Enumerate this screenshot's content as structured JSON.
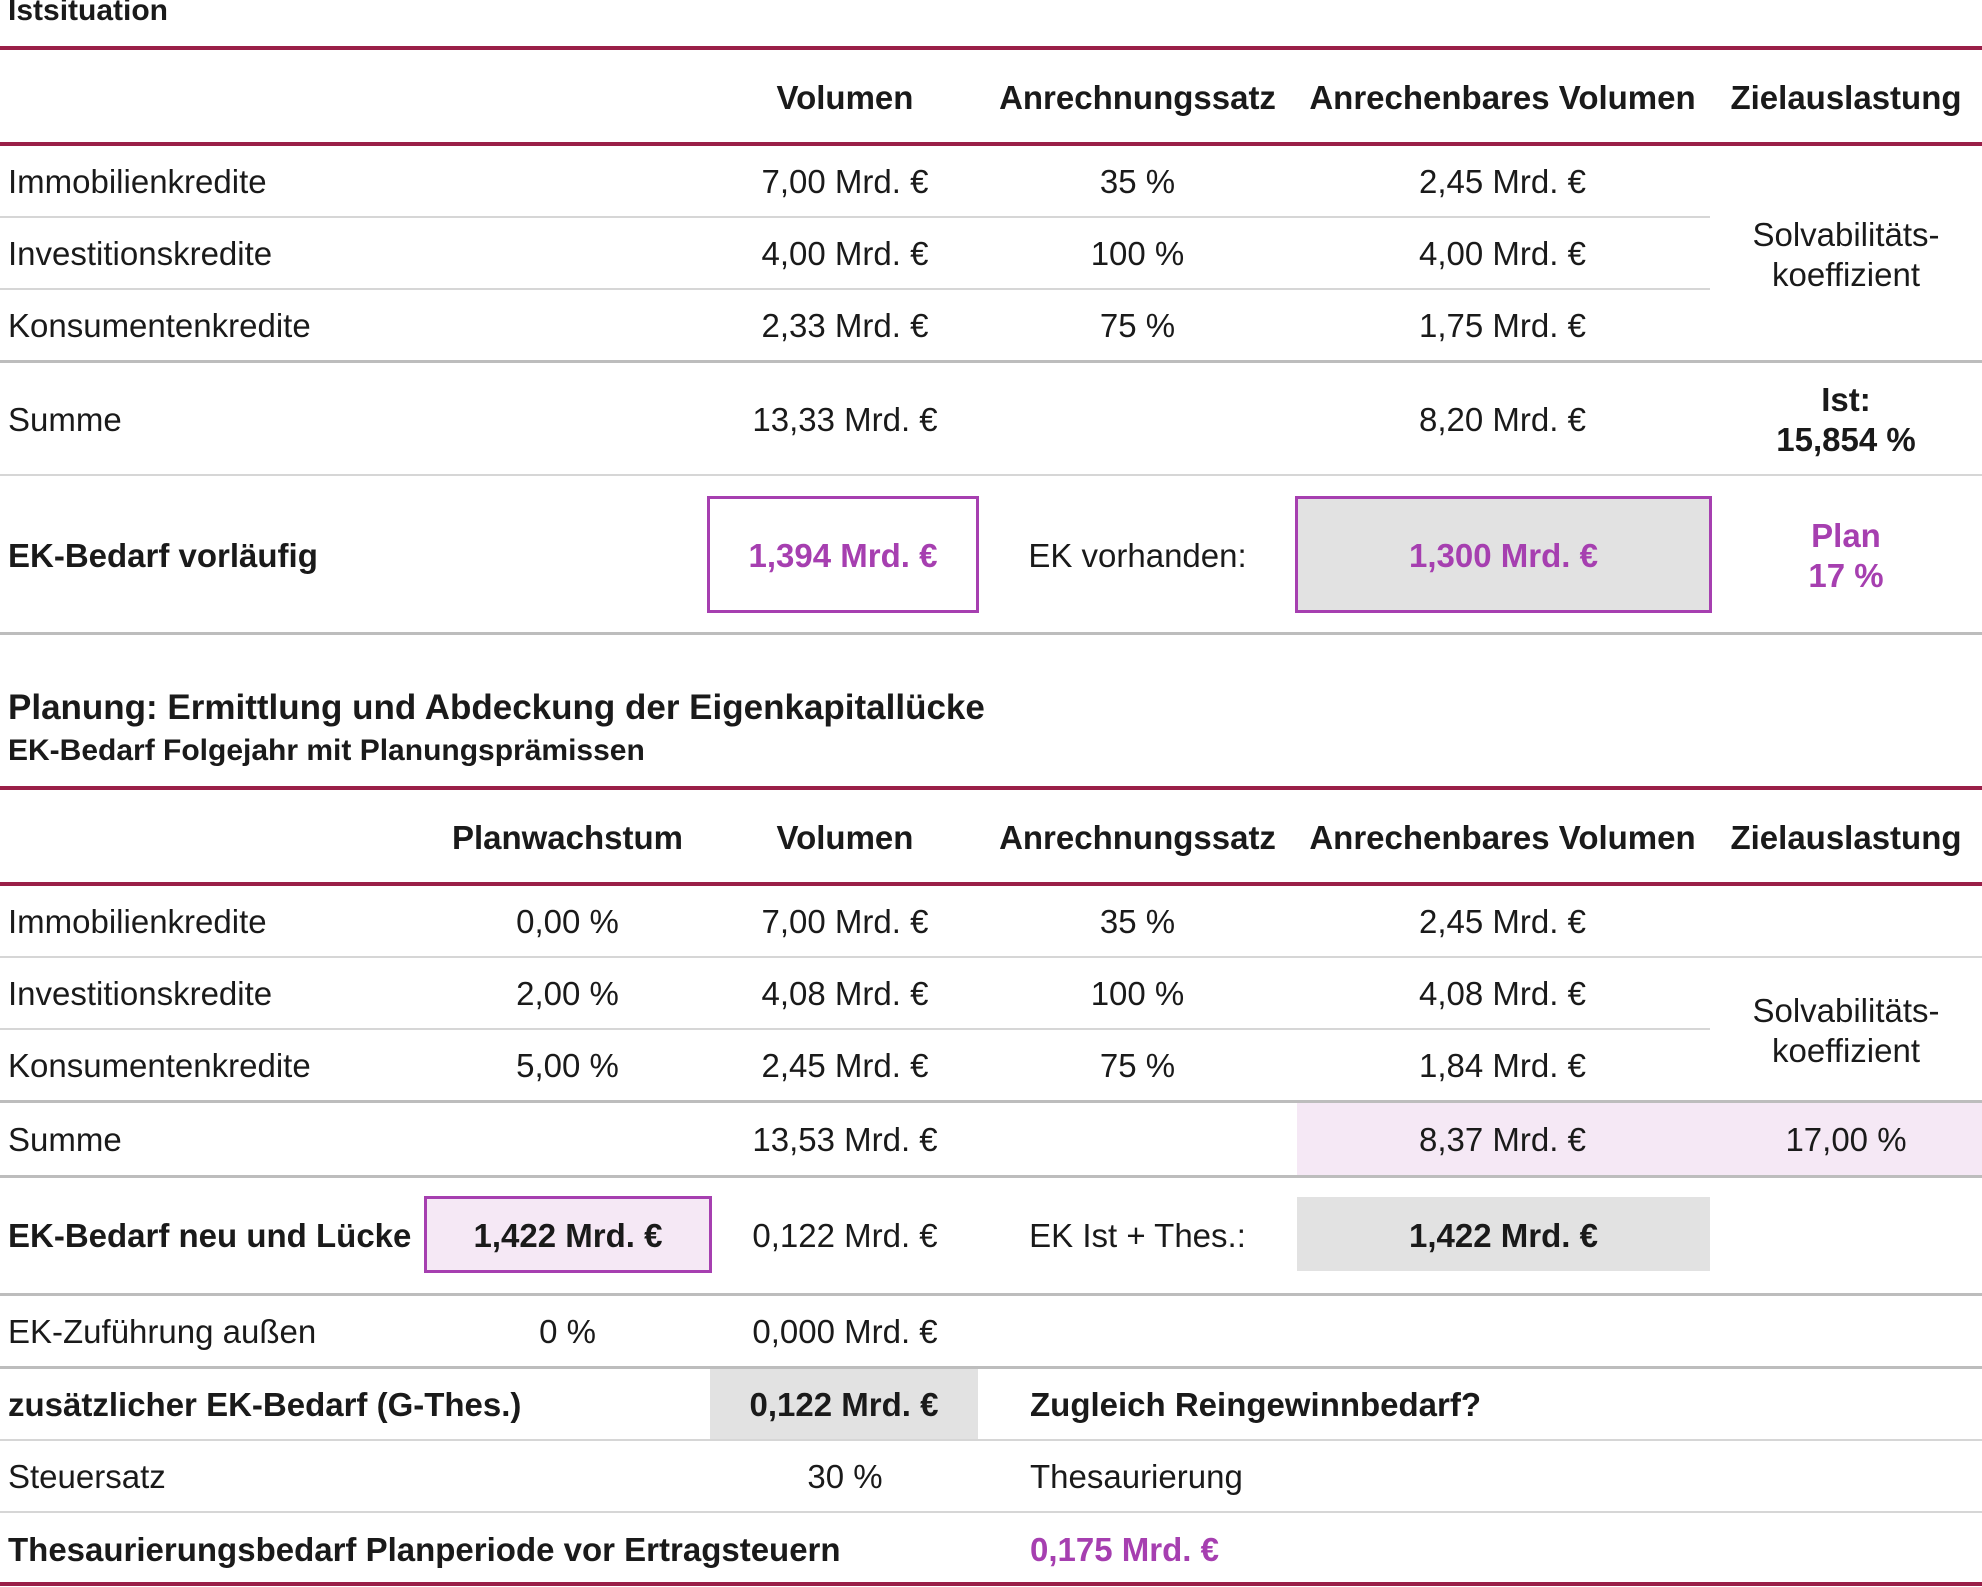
{
  "section1": {
    "title": "Istsituation",
    "headers": {
      "volumen": "Volumen",
      "anrechnungssatz": "Anrechnungssatz",
      "anrechenbares": "Anrechenbares Volumen",
      "zielauslastung": "Zielauslastung"
    },
    "rows": [
      {
        "label": "Immobilienkredite",
        "volumen": "7,00 Mrd. €",
        "satz": "35 %",
        "anrechenbar": "2,45 Mrd. €"
      },
      {
        "label": "Investitionskredite",
        "volumen": "4,00 Mrd. €",
        "satz": "100 %",
        "anrechenbar": "4,00 Mrd. €"
      },
      {
        "label": "Konsumentenkredite",
        "volumen": "2,33 Mrd. €",
        "satz": "75 %",
        "anrechenbar": "1,75 Mrd. €"
      }
    ],
    "ziel_line1": "Solvabilitäts-",
    "ziel_line2": "koeffizient",
    "summe": {
      "label": "Summe",
      "volumen": "13,33 Mrd. €",
      "anrechenbar": "8,20 Mrd. €",
      "ist_label": "Ist:",
      "ist_value": "15,854 %"
    },
    "ek": {
      "label": "EK-Bedarf vorläufig",
      "bedarf": "1,394 Mrd. €",
      "vorhanden_label": "EK vorhanden:",
      "vorhanden": "1,300 Mrd. €",
      "plan_label": "Plan",
      "plan_value": "17 %"
    }
  },
  "section2": {
    "title": "Planung: Ermittlung und Abdeckung der Eigenkapitallücke",
    "subtitle": "EK-Bedarf Folgejahr mit Planungsprämissen",
    "headers": {
      "planwachstum": "Planwachstum",
      "volumen": "Volumen",
      "anrechnungssatz": "Anrechnungssatz",
      "anrechenbares": "Anrechenbares Volumen",
      "zielauslastung": "Zielauslastung"
    },
    "rows": [
      {
        "label": "Immobilienkredite",
        "wachstum": "0,00 %",
        "volumen": "7,00 Mrd. €",
        "satz": "35 %",
        "anrechenbar": "2,45 Mrd. €"
      },
      {
        "label": "Investitionskredite",
        "wachstum": "2,00 %",
        "volumen": "4,08 Mrd. €",
        "satz": "100 %",
        "anrechenbar": "4,08 Mrd. €"
      },
      {
        "label": "Konsumentenkredite",
        "wachstum": "5,00 %",
        "volumen": "2,45 Mrd. €",
        "satz": "75 %",
        "anrechenbar": "1,84 Mrd. €"
      }
    ],
    "ziel_line1": "Solvabilitäts-",
    "ziel_line2": "koeffizient",
    "summe": {
      "label": "Summe",
      "volumen": "13,53 Mrd. €",
      "anrechenbar": "8,37 Mrd. €",
      "ziel": "17,00 %"
    },
    "ek_neu": {
      "label": "EK-Bedarf neu und Lücke",
      "bedarf": "1,422 Mrd. €",
      "luecke": "0,122 Mrd. €",
      "ist_label": "EK Ist + Thes.:",
      "ist_value": "1,422 Mrd. €"
    },
    "zufuehrung": {
      "label": "EK-Zuführung außen",
      "prozent": "0 %",
      "betrag": "0,000 Mrd. €"
    },
    "zusaetzlich": {
      "label": "zusätzlicher EK-Bedarf (G-Thes.)",
      "betrag": "0,122 Mrd. €",
      "frage": "Zugleich Reingewinnbedarf?"
    },
    "steuer": {
      "label": "Steuersatz",
      "satz": "30 %",
      "thes_label": "Thesaurierung"
    },
    "thesaurierung": {
      "label": "Thesaurierungsbedarf Planperiode vor Ertragsteuern",
      "betrag": "0,175 Mrd. €"
    }
  }
}
